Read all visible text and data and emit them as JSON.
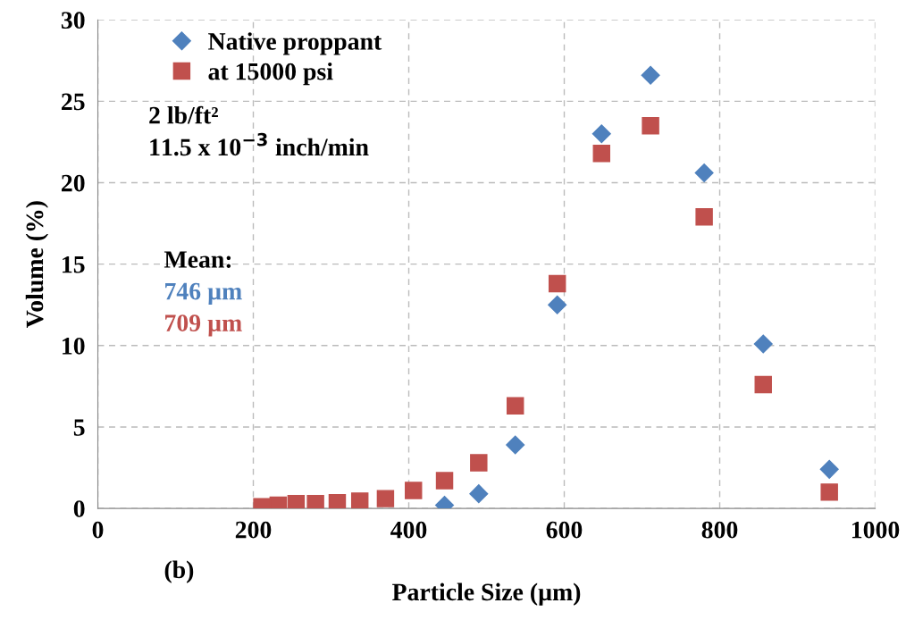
{
  "chart_data": {
    "type": "scatter",
    "xlabel": "Particle Size (µm)",
    "ylabel": "Volume (%)",
    "xlim": [
      0,
      1000
    ],
    "xticks": [
      0,
      200,
      400,
      600,
      800,
      1000
    ],
    "ylim": [
      0,
      30
    ],
    "yticks": [
      0,
      5,
      10,
      15,
      20,
      25,
      30
    ],
    "grid": true,
    "legend": "top left",
    "series": [
      {
        "name": "Native proppant",
        "color": "#4f81bd",
        "marker": "diamond",
        "x": [
          446,
          490,
          537,
          591,
          648,
          711,
          780,
          856,
          941
        ],
        "values": [
          0.2,
          0.9,
          3.9,
          12.5,
          23.0,
          26.6,
          20.6,
          10.1,
          2.4
        ]
      },
      {
        "name": "at 15000 psi",
        "color": "#c0504d",
        "marker": "square",
        "x": [
          211,
          232,
          255,
          280,
          308,
          337,
          370,
          406,
          446,
          490,
          537,
          591,
          648,
          711,
          780,
          856,
          941
        ],
        "values": [
          0.1,
          0.2,
          0.3,
          0.3,
          0.35,
          0.45,
          0.6,
          1.1,
          1.7,
          2.8,
          6.3,
          13.8,
          21.8,
          23.5,
          17.9,
          7.6,
          1.0
        ]
      }
    ],
    "annotations": [
      "2 lb/ft²",
      "11.5 x 10$^{−3}$ inch/min",
      "Mean:",
      "746 µm",
      "709 µm",
      "(b)"
    ]
  }
}
